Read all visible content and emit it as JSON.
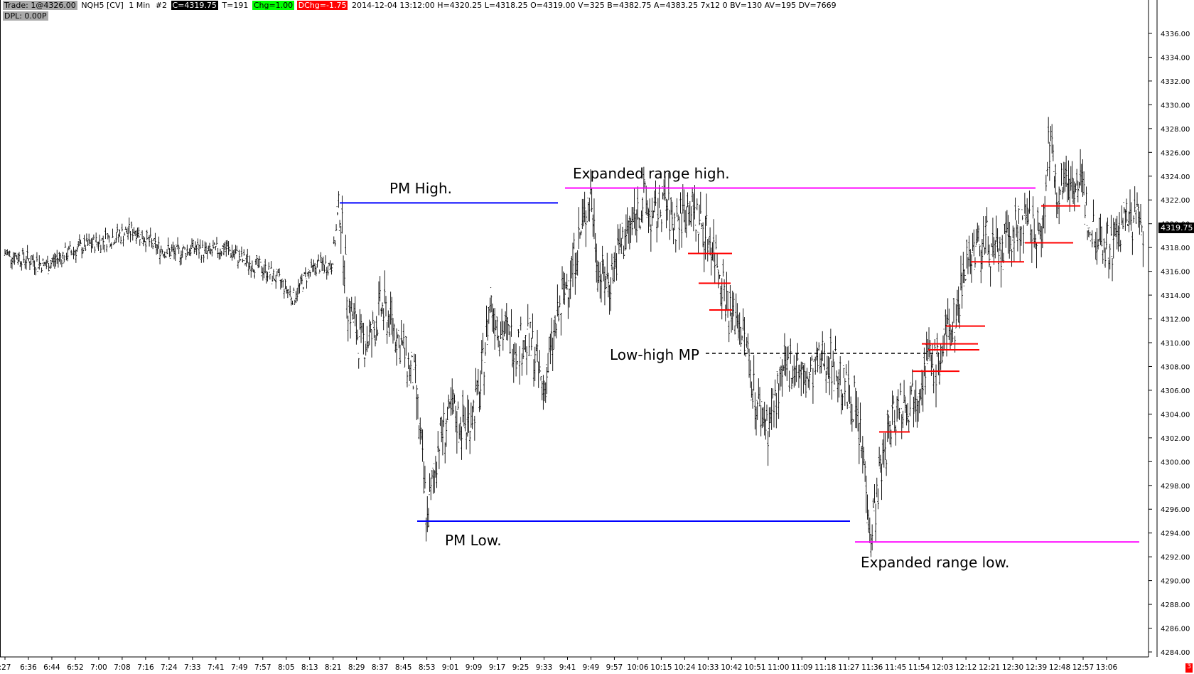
{
  "header": {
    "trade": "Trade: 1@4326.00",
    "symbol": "NQH5 [CV]",
    "interval": "1 Min",
    "chart_num": "#2",
    "close": "C=4319.75",
    "ticks": "T=191",
    "chg": "Chg=1.00",
    "dchg": "DChg=-1.75",
    "bar_info": "2014-12-04 13:12:00 H=4320.25 L=4318.25 O=4319.00 V=325 B=4382.75 A=4383.25 7x12 0 BV=130 AV=195 DV=7669",
    "dpl": "DPL: 0.00P"
  },
  "last_price_label": "4319.75",
  "corner_badge": "3",
  "colors": {
    "bars": "#000000",
    "pm_lines": "#0000ff",
    "expanded_range": "#ff00ff",
    "red_levels": "#ff0000",
    "midpoint": "#000000"
  },
  "annotations": {
    "pm_high": "PM High.",
    "pm_low": "PM Low.",
    "expanded_high": "Expanded range high.",
    "expanded_low": "Expanded range low.",
    "low_high_mp": "Low-high MP"
  },
  "chart_data": {
    "type": "ohlc",
    "title": "",
    "ylim": [
      4283.5,
      4337.5
    ],
    "yticks": [
      4284,
      4286,
      4288,
      4290,
      4292,
      4294,
      4296,
      4298,
      4300,
      4302,
      4304,
      4306,
      4308,
      4310,
      4312,
      4314,
      4316,
      4318,
      4320,
      4322,
      4324,
      4326,
      4328,
      4330,
      4332,
      4334,
      4336
    ],
    "xticks": [
      ":27",
      "6:36",
      "6:44",
      "6:52",
      "7:00",
      "7:08",
      "7:16",
      "7:24",
      "7:33",
      "7:41",
      "7:49",
      "7:57",
      "8:05",
      "8:13",
      "8:21",
      "8:29",
      "8:37",
      "8:45",
      "8:53",
      "9:01",
      "9:09",
      "9:17",
      "9:25",
      "9:33",
      "9:41",
      "9:49",
      "9:57",
      "10:06",
      "10:15",
      "10:24",
      "10:33",
      "10:42",
      "10:51",
      "11:00",
      "11:09",
      "11:18",
      "11:27",
      "11:36",
      "11:45",
      "11:54",
      "12:03",
      "12:12",
      "12:21",
      "12:30",
      "12:39",
      "12:48",
      "12:57",
      "13:06"
    ],
    "price_path": [
      [
        0,
        4317.5
      ],
      [
        20,
        4317
      ],
      [
        35,
        4316.5
      ],
      [
        52,
        4317.5
      ],
      [
        65,
        4318
      ],
      [
        80,
        4318.5
      ],
      [
        95,
        4319
      ],
      [
        110,
        4319.5
      ],
      [
        128,
        4318
      ],
      [
        145,
        4317.5
      ],
      [
        160,
        4318
      ],
      [
        172,
        4317.5
      ],
      [
        186,
        4318
      ],
      [
        200,
        4317
      ],
      [
        212,
        4316.5
      ],
      [
        222,
        4316
      ],
      [
        234,
        4315
      ],
      [
        244,
        4313.8
      ],
      [
        254,
        4315.5
      ],
      [
        264,
        4316.5
      ],
      [
        276,
        4316.5
      ],
      [
        283,
        4321.5
      ],
      [
        290,
        4313.5
      ],
      [
        300,
        4310
      ],
      [
        310,
        4310.5
      ],
      [
        318,
        4313
      ],
      [
        328,
        4311.5
      ],
      [
        338,
        4309
      ],
      [
        347,
        4306.5
      ],
      [
        357,
        4295
      ],
      [
        367,
        4302
      ],
      [
        378,
        4304
      ],
      [
        390,
        4303
      ],
      [
        402,
        4306
      ],
      [
        410,
        4313.5
      ],
      [
        420,
        4311
      ],
      [
        432,
        4310
      ],
      [
        445,
        4310
      ],
      [
        455,
        4306
      ],
      [
        465,
        4311
      ],
      [
        475,
        4315
      ],
      [
        485,
        4318.5
      ],
      [
        495,
        4322.5
      ],
      [
        502,
        4316
      ],
      [
        510,
        4315
      ],
      [
        520,
        4318
      ],
      [
        530,
        4320
      ],
      [
        540,
        4322
      ],
      [
        548,
        4320
      ],
      [
        556,
        4322
      ],
      [
        566,
        4320
      ],
      [
        578,
        4321.5
      ],
      [
        588,
        4320
      ],
      [
        597,
        4318.5
      ],
      [
        605,
        4316
      ],
      [
        612,
        4312.5
      ],
      [
        620,
        4312
      ],
      [
        628,
        4309
      ],
      [
        635,
        4305
      ],
      [
        645,
        4303
      ],
      [
        652,
        4305.5
      ],
      [
        660,
        4307.5
      ],
      [
        668,
        4308.5
      ],
      [
        676,
        4306.5
      ],
      [
        684,
        4307.5
      ],
      [
        693,
        4309
      ],
      [
        702,
        4308
      ],
      [
        710,
        4306
      ],
      [
        718,
        4305
      ],
      [
        726,
        4300
      ],
      [
        732,
        4294
      ],
      [
        740,
        4299
      ],
      [
        748,
        4303
      ],
      [
        756,
        4305
      ],
      [
        764,
        4305
      ],
      [
        772,
        4306.5
      ],
      [
        780,
        4308.5
      ],
      [
        788,
        4308
      ],
      [
        796,
        4310.5
      ],
      [
        804,
        4312
      ],
      [
        812,
        4317
      ],
      [
        820,
        4318
      ],
      [
        830,
        4318.5
      ],
      [
        840,
        4317
      ],
      [
        850,
        4319
      ],
      [
        860,
        4320
      ],
      [
        870,
        4319.5
      ],
      [
        877,
        4319
      ],
      [
        882,
        4327
      ],
      [
        890,
        4323
      ],
      [
        900,
        4324
      ],
      [
        910,
        4323
      ],
      [
        917,
        4320
      ],
      [
        925,
        4319
      ],
      [
        935,
        4318
      ],
      [
        945,
        4320
      ],
      [
        955,
        4320.5
      ],
      [
        963,
        4319.5
      ]
    ],
    "levels": {
      "pm_high": 4321.75,
      "pm_low": 4295,
      "expanded_range_high": 4323,
      "expanded_range_low": 4293.25,
      "low_high_mp": 4309.1
    },
    "red_levels": [
      4317.5,
      4315,
      4312.75,
      4307.6,
      4302.5,
      4309.4,
      4309.9,
      4311.4,
      4316.8,
      4318.4,
      4321.5
    ]
  }
}
